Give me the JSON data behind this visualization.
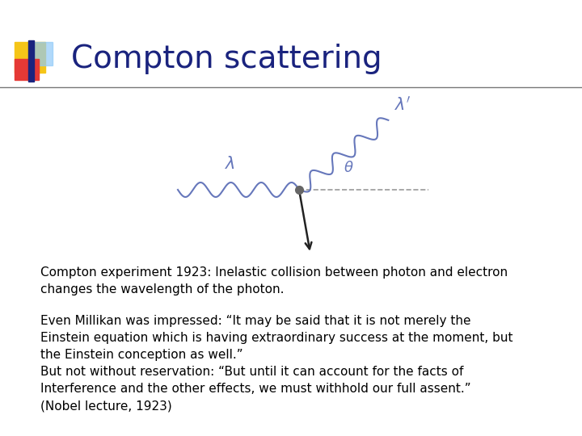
{
  "title": "Compton scattering",
  "title_color": "#1a237e",
  "title_fontsize": 28,
  "bg_color": "#ffffff",
  "header_line_color": "#777777",
  "logo_colors": {
    "yellow": "#f5c518",
    "red": "#e53935",
    "blue": "#1a237e",
    "light_blue": "#90caf9"
  },
  "diagram_caption": "Compton experiment 1923: Inelastic collision between photon and electron\nchanges the wavelength of the photon.",
  "body_text": "Even Millikan was impressed: “It may be said that it is not merely the\nEinstein equation which is having extraordinary success at the moment, but\nthe Einstein conception as well.”\nBut not without reservation: “But until it can account for the facts of\nInterference and the other effects, we must withhold our full assent.”\n(Nobel lecture, 1923)",
  "caption_fontsize": 11,
  "body_fontsize": 11,
  "wave_color": "#6677bb",
  "arrow_color": "#222222",
  "dot_color": "#666666",
  "dashed_color": "#999999",
  "lambda_color": "#6677bb",
  "theta_color": "#6677bb"
}
